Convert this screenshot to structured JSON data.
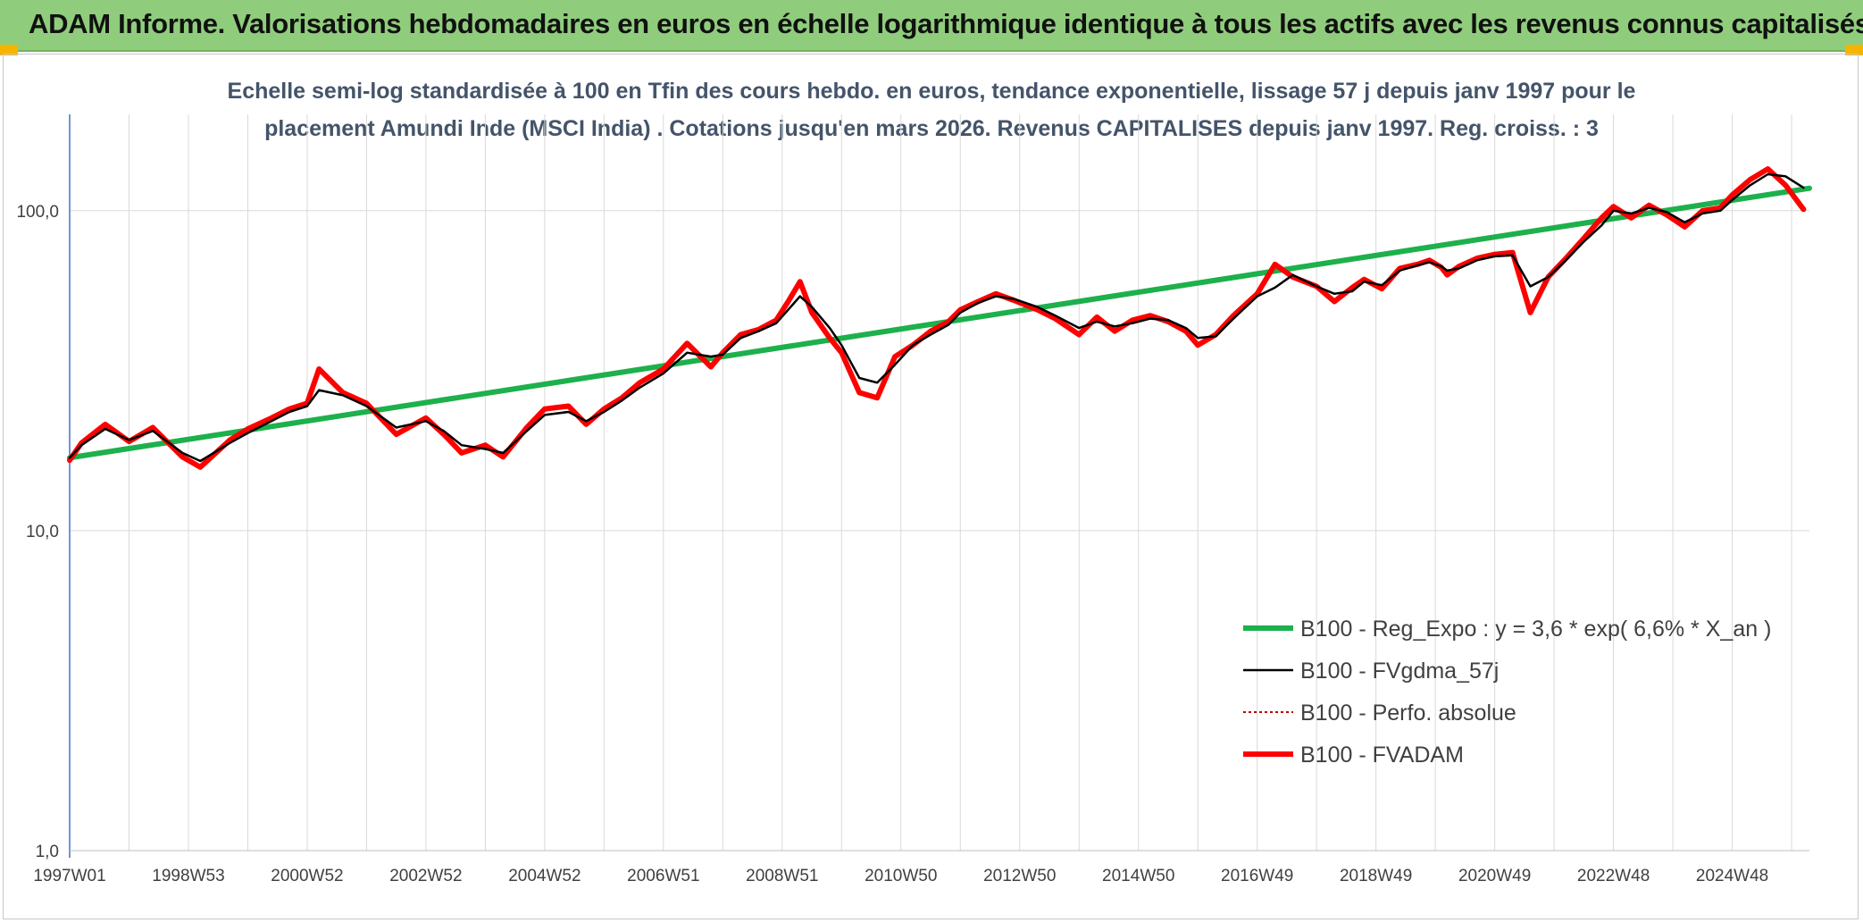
{
  "header": {
    "title": "ADAM Informe. Valorisations hebdomadaires en euros en échelle logarithmique identique à tous les actifs avec les revenus connus capitalisés"
  },
  "colors": {
    "header_bg": "#8fcd7c",
    "corner": "#f5b400",
    "regression": "#1db04c",
    "gdma": "#000000",
    "perfo": "#c00000",
    "fvadam": "#ff0000",
    "subtitle": "#44546a"
  },
  "chart_data": {
    "type": "line",
    "title_line1": "Echelle semi-log standardisée à 100 en Tfin des cours hebdo. en euros, tendance exponentielle, lissage 57 j depuis janv 1997 pour le",
    "title_line2": "placement Amundi Inde (MSCI India) . Cotations jusqu'en mars 2026. Revenus CAPITALISES depuis janv 1997. Reg. croiss. : 3",
    "y_scale": "log",
    "ylim": [
      1,
      200
    ],
    "y_ticks": [
      1,
      10,
      100
    ],
    "y_tick_labels": [
      "1,0",
      "10,0",
      "100,0"
    ],
    "x_tick_labels": [
      "1997W01",
      "1998W53",
      "2000W52",
      "2002W52",
      "2004W52",
      "2006W51",
      "2008W51",
      "2010W50",
      "2012W50",
      "2014W50",
      "2016W49",
      "2018W49",
      "2020W49",
      "2022W48",
      "2024W48"
    ],
    "x_range_years": [
      1997.0,
      2026.3
    ],
    "grid": true,
    "legend_position": "bottom-right",
    "series": [
      {
        "name": "B100 - Reg_Expo : y = 3,6 * exp( 6,6% *  X_an )",
        "color": "#1db04c",
        "style": "thick",
        "x": [
          1997.0,
          2026.3
        ],
        "values": [
          16.9,
          117.5
        ]
      },
      {
        "name": "B100 - FVgdma_57j",
        "color": "#000000",
        "style": "solid",
        "x": [
          1997.0,
          1997.2,
          1997.6,
          1998.0,
          1998.4,
          1998.9,
          1999.2,
          1999.7,
          2000.0,
          2000.4,
          2000.7,
          2001.0,
          2001.2,
          2001.6,
          2002.0,
          2002.5,
          2003.0,
          2003.3,
          2003.6,
          2004.0,
          2004.3,
          2004.7,
          2005.0,
          2005.4,
          2005.7,
          2006.0,
          2006.3,
          2006.6,
          2007.0,
          2007.4,
          2007.8,
          2008.0,
          2008.3,
          2008.6,
          2008.9,
          2009.1,
          2009.3,
          2009.5,
          2009.8,
          2010.0,
          2010.3,
          2010.6,
          2010.9,
          2011.2,
          2011.5,
          2011.8,
          2012.0,
          2012.3,
          2012.6,
          2012.9,
          2013.3,
          2013.6,
          2014.0,
          2014.3,
          2014.6,
          2014.9,
          2015.2,
          2015.5,
          2015.8,
          2016.0,
          2016.3,
          2016.6,
          2017.0,
          2017.3,
          2017.6,
          2018.0,
          2018.3,
          2018.6,
          2018.8,
          2019.1,
          2019.4,
          2019.7,
          2019.9,
          2020.1,
          2020.2,
          2020.4,
          2020.7,
          2021.0,
          2021.3,
          2021.6,
          2021.9,
          2022.2,
          2022.5,
          2022.8,
          2023.0,
          2023.3,
          2023.6,
          2023.9,
          2024.2,
          2024.5,
          2024.8,
          2025.0,
          2025.3,
          2025.6,
          2025.9,
          2026.2
        ],
        "values": [
          16.9,
          18.5,
          20.8,
          19.2,
          20.5,
          17.5,
          16.5,
          18.8,
          20.2,
          22.0,
          23.5,
          24.5,
          27.5,
          26.5,
          24.5,
          21.0,
          22.0,
          20.5,
          18.5,
          18.0,
          17.5,
          20.5,
          23.0,
          23.5,
          22.0,
          23.5,
          25.5,
          28.0,
          31.0,
          36.0,
          35.0,
          35.5,
          40.0,
          42.0,
          44.5,
          49.0,
          54.0,
          50.0,
          43.0,
          38.0,
          30.0,
          29.0,
          33.0,
          38.0,
          41.0,
          44.0,
          48.0,
          51.5,
          54.0,
          53.0,
          50.0,
          47.0,
          43.0,
          45.0,
          43.5,
          44.5,
          46.0,
          45.5,
          43.0,
          40.0,
          40.5,
          46.0,
          54.0,
          57.5,
          63.0,
          58.0,
          55.0,
          56.0,
          60.0,
          58.5,
          65.0,
          67.5,
          69.0,
          67.0,
          65.0,
          66.0,
          70.0,
          72.0,
          72.5,
          58.0,
          62.0,
          70.0,
          80.0,
          90.0,
          100.0,
          98.0,
          102.0,
          99.0,
          92.0,
          98.0,
          100.0,
          108.0,
          120.0,
          130.0,
          128.0,
          118.0
        ]
      },
      {
        "name": "B100 - Perfo. absolue",
        "color": "#c00000",
        "style": "dotted",
        "x": [],
        "values": []
      },
      {
        "name": "B100 - FVADAM",
        "color": "#ff0000",
        "style": "thick",
        "x": [
          1997.0,
          1997.2,
          1997.6,
          1998.0,
          1998.4,
          1998.9,
          1999.2,
          1999.7,
          2000.0,
          2000.4,
          2000.7,
          2001.0,
          2001.2,
          2001.6,
          2002.0,
          2002.5,
          2003.0,
          2003.3,
          2003.6,
          2004.0,
          2004.3,
          2004.7,
          2005.0,
          2005.4,
          2005.7,
          2006.0,
          2006.3,
          2006.6,
          2007.0,
          2007.4,
          2007.8,
          2008.0,
          2008.3,
          2008.6,
          2008.9,
          2009.1,
          2009.3,
          2009.5,
          2009.8,
          2010.0,
          2010.3,
          2010.6,
          2010.9,
          2011.2,
          2011.5,
          2011.8,
          2012.0,
          2012.3,
          2012.6,
          2012.9,
          2013.3,
          2013.6,
          2014.0,
          2014.3,
          2014.6,
          2014.9,
          2015.2,
          2015.5,
          2015.8,
          2016.0,
          2016.3,
          2016.6,
          2017.0,
          2017.3,
          2017.6,
          2018.0,
          2018.3,
          2018.6,
          2018.8,
          2019.1,
          2019.4,
          2019.7,
          2019.9,
          2020.1,
          2020.2,
          2020.4,
          2020.7,
          2021.0,
          2021.3,
          2021.6,
          2021.9,
          2022.2,
          2022.5,
          2022.8,
          2023.0,
          2023.3,
          2023.6,
          2023.9,
          2024.2,
          2024.5,
          2024.8,
          2025.0,
          2025.3,
          2025.6,
          2025.9,
          2026.2
        ],
        "values": [
          16.6,
          18.8,
          21.5,
          19.0,
          21.0,
          17.0,
          15.8,
          19.2,
          20.8,
          22.5,
          24.0,
          25.0,
          32.0,
          27.0,
          25.0,
          20.0,
          22.5,
          20.0,
          17.5,
          18.5,
          17.0,
          21.0,
          24.0,
          24.5,
          21.5,
          24.0,
          26.0,
          29.0,
          32.0,
          38.5,
          32.5,
          36.0,
          41.0,
          42.5,
          45.5,
          52.0,
          60.0,
          48.0,
          40.0,
          36.0,
          27.0,
          26.0,
          35.0,
          38.0,
          42.0,
          45.0,
          49.0,
          52.0,
          55.0,
          52.5,
          49.0,
          46.0,
          41.0,
          46.5,
          42.0,
          45.5,
          47.0,
          45.0,
          42.0,
          38.0,
          41.0,
          47.0,
          55.0,
          68.0,
          62.0,
          58.0,
          52.0,
          57.5,
          61.0,
          57.0,
          66.0,
          68.0,
          70.0,
          66.5,
          63.0,
          67.0,
          71.0,
          73.0,
          74.0,
          48.0,
          62.0,
          71.0,
          82.0,
          95.0,
          103.0,
          95.0,
          104.0,
          97.0,
          89.0,
          100.0,
          102.0,
          112.0,
          125.0,
          135.0,
          120.0,
          101.0
        ]
      }
    ]
  }
}
